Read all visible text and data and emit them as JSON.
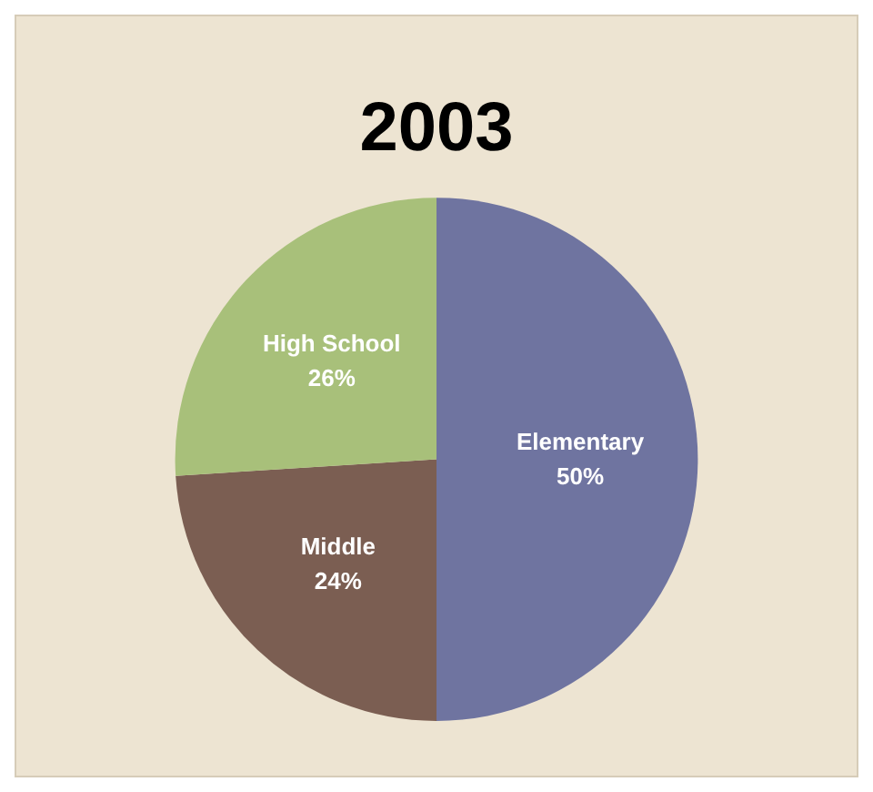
{
  "chart_data": {
    "type": "pie",
    "title": "2003",
    "categories": [
      "Elementary",
      "Middle",
      "High School"
    ],
    "values": [
      50,
      24,
      26
    ],
    "colors": [
      "#6f74a0",
      "#7b5e52",
      "#a8c07a"
    ],
    "value_labels": [
      "50%",
      "24%",
      "26%"
    ],
    "legend": false
  }
}
